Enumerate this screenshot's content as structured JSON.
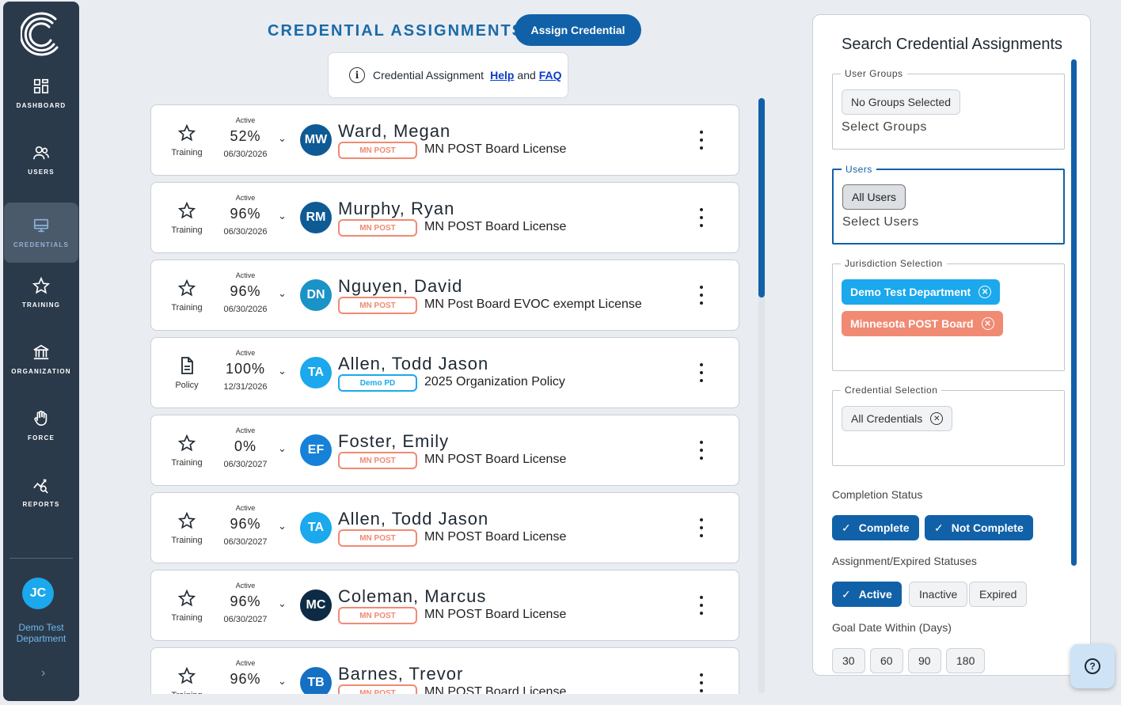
{
  "sidebar": {
    "items": [
      {
        "label": "DASHBOARD",
        "icon": "dashboard-icon"
      },
      {
        "label": "USERS",
        "icon": "users-icon"
      },
      {
        "label": "CREDENTIALS",
        "icon": "credentials-icon"
      },
      {
        "label": "TRAINING",
        "icon": "star-icon"
      },
      {
        "label": "ORGANIZATION",
        "icon": "building-icon"
      },
      {
        "label": "FORCE",
        "icon": "hand-icon"
      },
      {
        "label": "REPORTS",
        "icon": "reports-icon"
      }
    ],
    "active_item": "CREDENTIALS",
    "user": {
      "initials": "JC",
      "department": "Demo Test Department"
    }
  },
  "header": {
    "title": "CREDENTIAL ASSIGNMENTS",
    "assign_button": "Assign Credential",
    "help": {
      "prefix": "Credential Assignment",
      "help_link": "Help",
      "and": "and",
      "faq_link": "FAQ"
    }
  },
  "assignments": [
    {
      "type": "Training",
      "status": "Active",
      "percent": "52%",
      "date": "06/30/2026",
      "initials": "MW",
      "name": "Ward, Megan",
      "tag": "MN POST",
      "credential": "MN POST Board License",
      "avatar_color": "#0e5a95"
    },
    {
      "type": "Training",
      "status": "Active",
      "percent": "96%",
      "date": "06/30/2026",
      "initials": "RM",
      "name": "Murphy, Ryan",
      "tag": "MN POST",
      "credential": "MN POST Board License",
      "avatar_color": "#0e5a95"
    },
    {
      "type": "Training",
      "status": "Active",
      "percent": "96%",
      "date": "06/30/2026",
      "initials": "DN",
      "name": "Nguyen, David",
      "tag": "MN POST",
      "credential": "MN Post Board EVOC exempt License",
      "avatar_color": "#1a93c6"
    },
    {
      "type": "Policy",
      "status": "Active",
      "percent": "100%",
      "date": "12/31/2026",
      "initials": "TA",
      "name": "Allen, Todd Jason",
      "tag": "Demo PD",
      "credential": "2025 Organization Policy",
      "avatar_color": "#1ba8ec"
    },
    {
      "type": "Training",
      "status": "Active",
      "percent": "0%",
      "date": "06/30/2027",
      "initials": "EF",
      "name": "Foster, Emily",
      "tag": "MN POST",
      "credential": "MN POST Board License",
      "avatar_color": "#1581d8"
    },
    {
      "type": "Training",
      "status": "Active",
      "percent": "96%",
      "date": "06/30/2027",
      "initials": "TA",
      "name": "Allen, Todd Jason",
      "tag": "MN POST",
      "credential": "MN POST Board License",
      "avatar_color": "#1ba8ec"
    },
    {
      "type": "Training",
      "status": "Active",
      "percent": "96%",
      "date": "06/30/2027",
      "initials": "MC",
      "name": "Coleman, Marcus",
      "tag": "MN POST",
      "credential": "MN POST Board License",
      "avatar_color": "#0d2b45"
    },
    {
      "type": "Training",
      "status": "Active",
      "percent": "96%",
      "date": "",
      "initials": "TB",
      "name": "Barnes, Trevor",
      "tag": "MN POST",
      "credential": "MN POST Board License",
      "avatar_color": "#1570c4"
    }
  ],
  "search": {
    "title": "Search Credential Assignments",
    "user_groups": {
      "legend": "User Groups",
      "chip": "No Groups Selected",
      "placeholder": "Select Groups"
    },
    "users": {
      "legend": "Users",
      "chip": "All Users",
      "placeholder": "Select Users"
    },
    "jurisdiction": {
      "legend": "Jurisdiction Selection",
      "chips": [
        "Demo Test Department",
        "Minnesota POST Board"
      ]
    },
    "credential": {
      "legend": "Credential Selection",
      "chip": "All Credentials"
    },
    "completion_status": {
      "label": "Completion Status",
      "options": [
        "Complete",
        "Not Complete"
      ]
    },
    "assignment_status": {
      "label": "Assignment/Expired Statuses",
      "options": [
        "Active",
        "Inactive",
        "Expired"
      ]
    },
    "goal_date": {
      "label": "Goal Date Within (Days)",
      "options": [
        "30",
        "60",
        "90",
        "180"
      ]
    }
  }
}
